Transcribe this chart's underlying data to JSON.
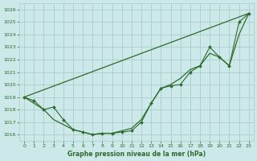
{
  "xlabel": "Graphe pression niveau de la mer (hPa)",
  "bg_color": "#cce8e8",
  "grid_color": "#aacccc",
  "line_color": "#2d6b2d",
  "text_color": "#2d6b2d",
  "ylim": [
    1015.5,
    1026.5
  ],
  "xlim": [
    -0.5,
    23.5
  ],
  "yticks": [
    1016,
    1017,
    1018,
    1019,
    1020,
    1021,
    1022,
    1023,
    1024,
    1025,
    1026
  ],
  "xticks": [
    0,
    1,
    2,
    3,
    4,
    5,
    6,
    7,
    8,
    9,
    10,
    11,
    12,
    13,
    14,
    15,
    16,
    17,
    18,
    19,
    20,
    21,
    22,
    23
  ],
  "series_main": {
    "x": [
      0,
      1,
      2,
      3,
      4,
      5,
      6,
      7,
      8,
      9,
      10,
      11,
      12,
      13,
      14,
      15,
      16,
      17,
      18,
      19,
      20,
      21,
      22,
      23
    ],
    "y": [
      1019.0,
      1018.7,
      1018.0,
      1018.2,
      1017.2,
      1016.4,
      1016.2,
      1016.0,
      1016.1,
      1016.1,
      1016.2,
      1016.3,
      1017.0,
      1018.5,
      1019.7,
      1019.9,
      1020.0,
      1021.0,
      1021.5,
      1023.0,
      1022.2,
      1021.5,
      1025.0,
      1025.7
    ]
  },
  "series_upper": {
    "x": [
      0,
      23
    ],
    "y": [
      1019.0,
      1025.7
    ]
  },
  "series_lower": {
    "x": [
      0,
      2,
      3,
      4,
      5,
      6,
      7,
      8,
      9,
      10,
      11,
      12,
      13,
      14,
      15,
      16,
      17,
      18,
      19,
      20,
      21,
      22,
      23
    ],
    "y": [
      1019.0,
      1018.0,
      1017.2,
      1016.8,
      1016.4,
      1016.2,
      1016.0,
      1016.1,
      1016.1,
      1016.3,
      1016.5,
      1017.2,
      1018.5,
      1019.7,
      1020.0,
      1020.5,
      1021.2,
      1021.5,
      1022.5,
      1022.2,
      1021.5,
      1024.0,
      1025.7
    ]
  }
}
